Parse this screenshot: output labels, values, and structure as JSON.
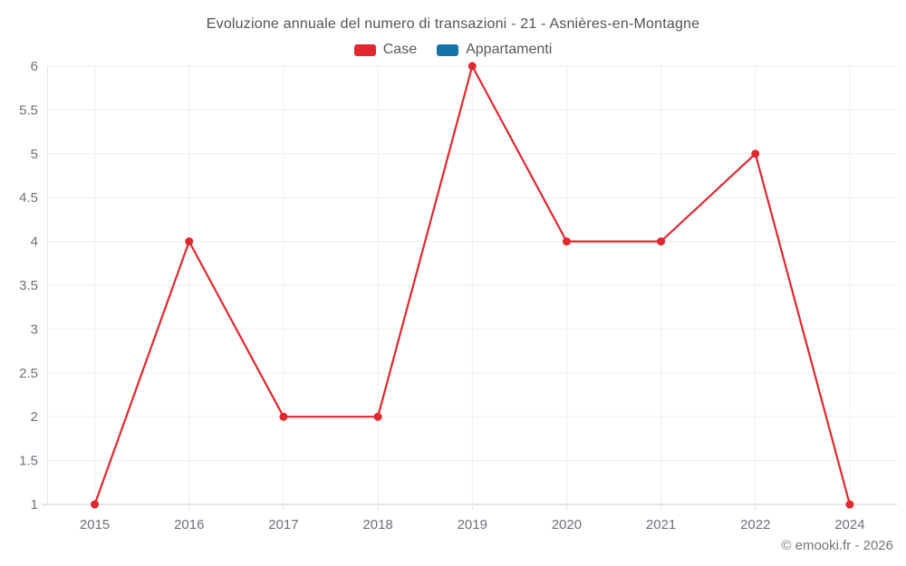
{
  "chart": {
    "title": "Evoluzione annuale del numero di transazioni - 21 - Asnières-en-Montagne",
    "footer": "© emooki.fr - 2026"
  },
  "chart_data": {
    "type": "line",
    "title": "Evoluzione annuale del numero di transazioni - 21 - Asnières-en-Montagne",
    "categories": [
      "2015",
      "2016",
      "2017",
      "2018",
      "2019",
      "2020",
      "2021",
      "2022",
      "2024"
    ],
    "series": [
      {
        "name": "Case",
        "color": "#e0282e",
        "values": [
          1,
          4,
          2,
          2,
          6,
          4,
          4,
          5,
          1
        ]
      },
      {
        "name": "Appartamenti",
        "color": "#1473a6",
        "values": []
      }
    ],
    "xlabel": "",
    "ylabel": "",
    "ylim": [
      1,
      6
    ],
    "ytick_step": 0.5,
    "grid": true,
    "legend_position": "top",
    "colors": {
      "grid_line": "#ededed",
      "axis_line": "#cccccc",
      "axis_tick": "#e0e0e0",
      "axis_text": "#6e7079"
    }
  }
}
